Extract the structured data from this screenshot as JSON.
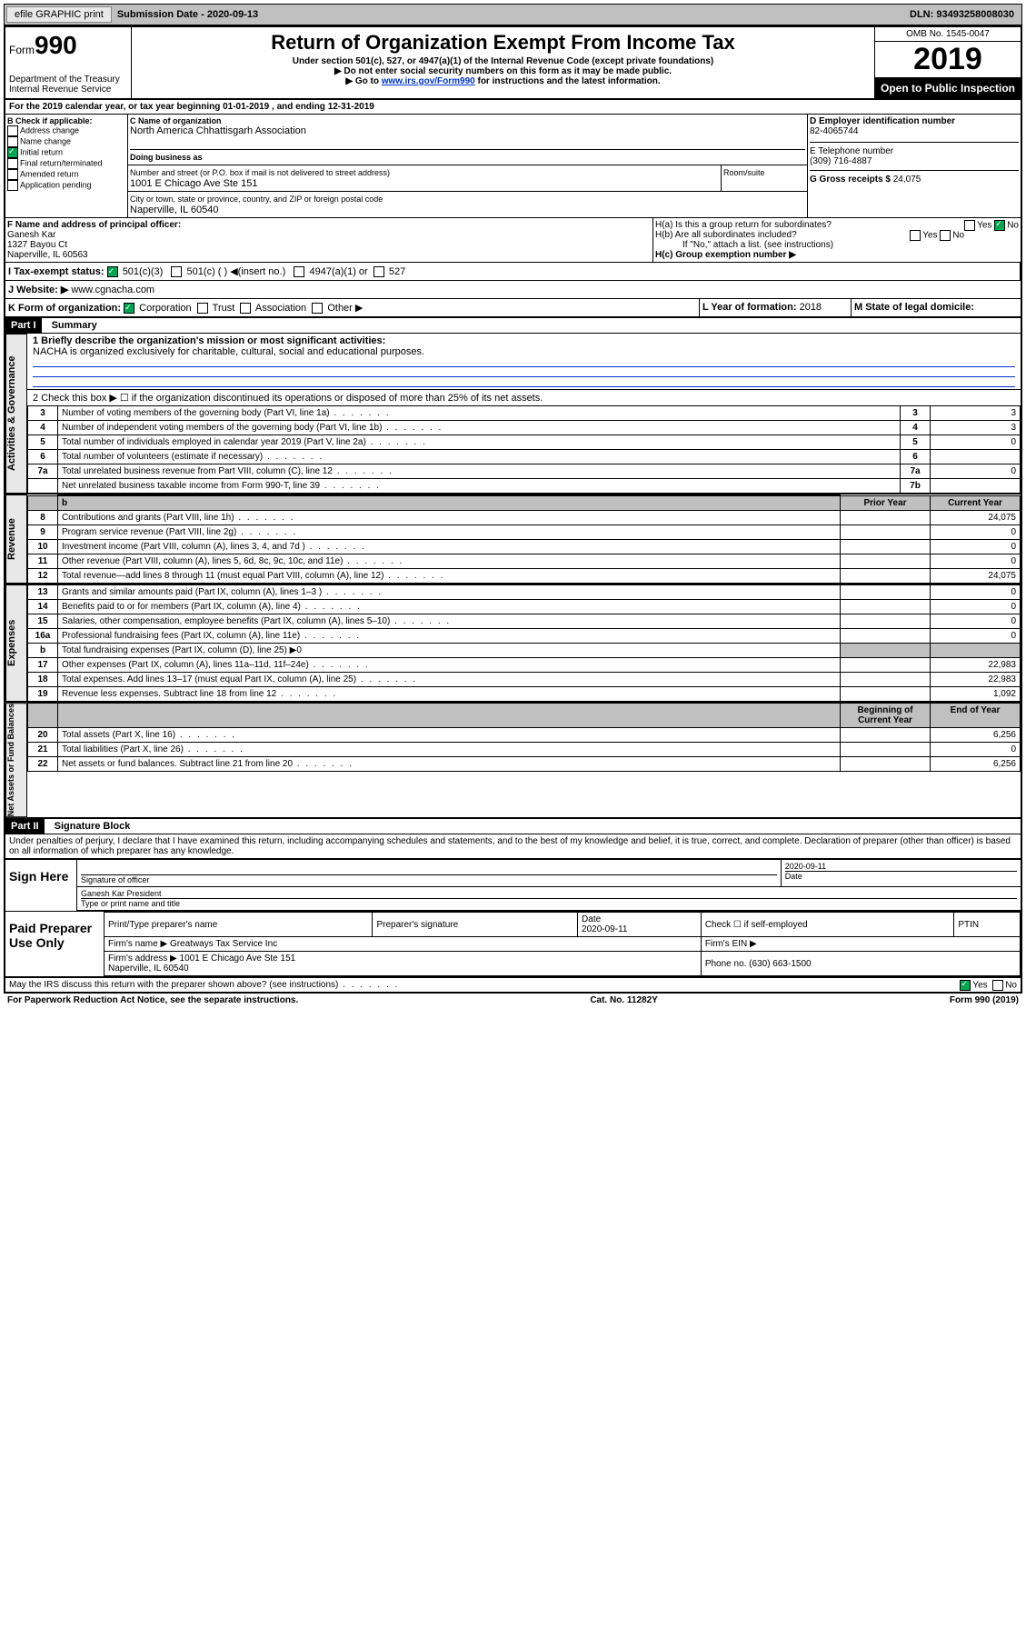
{
  "topbar": {
    "efile": "efile GRAPHIC print",
    "sub_label": "Submission Date - 2020-09-13",
    "dln": "DLN: 93493258008030"
  },
  "header": {
    "form_prefix": "Form",
    "form_no": "990",
    "dept": "Department of the Treasury\nInternal Revenue Service",
    "title": "Return of Organization Exempt From Income Tax",
    "sub1": "Under section 501(c), 527, or 4947(a)(1) of the Internal Revenue Code (except private foundations)",
    "sub2": "▶ Do not enter social security numbers on this form as it may be made public.",
    "sub3_a": "▶ Go to ",
    "sub3_link": "www.irs.gov/Form990",
    "sub3_b": " for instructions and the latest information.",
    "omb": "OMB No. 1545-0047",
    "year": "2019",
    "inspect": "Open to Public Inspection"
  },
  "line_a": "For the 2019 calendar year, or tax year beginning 01-01-2019   , and ending 12-31-2019",
  "box_b": {
    "title": "B Check if applicable:",
    "items": [
      "Address change",
      "Name change",
      "Initial return",
      "Final return/terminated",
      "Amended return",
      "Application pending"
    ],
    "checked_idx": 2
  },
  "box_c": {
    "lbl_name": "C Name of organization",
    "name": "North America Chhattisgarh Association",
    "dba_lbl": "Doing business as",
    "dba": "",
    "addr_lbl": "Number and street (or P.O. box if mail is not delivered to street address)",
    "room_lbl": "Room/suite",
    "addr": "1001 E Chicago Ave Ste 151",
    "city_lbl": "City or town, state or province, country, and ZIP or foreign postal code",
    "city": "Naperville, IL  60540"
  },
  "box_d": {
    "lbl": "D Employer identification number",
    "val": "82-4065744"
  },
  "box_e": {
    "lbl": "E Telephone number",
    "val": "(309) 716-4887"
  },
  "box_g": {
    "lbl": "G Gross receipts $",
    "val": "24,075"
  },
  "box_f": {
    "lbl": "F  Name and address of principal officer:",
    "name": "Ganesh Kar",
    "addr": "1327 Bayou Ct\nNaperville, IL  60563"
  },
  "box_h": {
    "a": "H(a)  Is this a group return for subordinates?",
    "a_yes": "Yes",
    "a_no": "No",
    "b": "H(b)  Are all subordinates included?",
    "b_yes": "Yes",
    "b_no": "No",
    "note": "If \"No,\" attach a list. (see instructions)",
    "c": "H(c)  Group exemption number ▶"
  },
  "row_i": {
    "lbl": "I     Tax-exempt status:",
    "opts": [
      "501(c)(3)",
      "501(c) (  ) ◀(insert no.)",
      "4947(a)(1) or",
      "527"
    ]
  },
  "row_j": {
    "lbl": "J    Website: ▶",
    "val": "www.cgnacha.com"
  },
  "row_k": {
    "lbl": "K Form of organization:",
    "opts": [
      "Corporation",
      "Trust",
      "Association",
      "Other ▶"
    ]
  },
  "row_l": {
    "lbl": "L Year of formation:",
    "val": "2018"
  },
  "row_m": {
    "lbl": "M State of legal domicile:",
    "val": ""
  },
  "part1": {
    "hdr": "Part I",
    "title": "Summary",
    "q1": "1  Briefly describe the organization's mission or most significant activities:",
    "q1_ans": "NACHA is organized exclusively for charitable, cultural, social and educational purposes.",
    "q2": "2   Check this box ▶ ☐  if the organization discontinued its operations or disposed of more than 25% of its net assets.",
    "rows_ag": [
      {
        "n": "3",
        "t": "Number of voting members of the governing body (Part VI, line 1a)",
        "idx": "3",
        "v": "3"
      },
      {
        "n": "4",
        "t": "Number of independent voting members of the governing body (Part VI, line 1b)",
        "idx": "4",
        "v": "3"
      },
      {
        "n": "5",
        "t": "Total number of individuals employed in calendar year 2019 (Part V, line 2a)",
        "idx": "5",
        "v": "0"
      },
      {
        "n": "6",
        "t": "Total number of volunteers (estimate if necessary)",
        "idx": "6",
        "v": ""
      },
      {
        "n": "7a",
        "t": "Total unrelated business revenue from Part VIII, column (C), line 12",
        "idx": "7a",
        "v": "0"
      },
      {
        "n": "",
        "t": "Net unrelated business taxable income from Form 990-T, line 39",
        "idx": "7b",
        "v": ""
      }
    ],
    "col_hdr_prior": "Prior Year",
    "col_hdr_curr": "Current Year",
    "rows_rev": [
      {
        "n": "8",
        "t": "Contributions and grants (Part VIII, line 1h)",
        "p": "",
        "c": "24,075"
      },
      {
        "n": "9",
        "t": "Program service revenue (Part VIII, line 2g)",
        "p": "",
        "c": "0"
      },
      {
        "n": "10",
        "t": "Investment income (Part VIII, column (A), lines 3, 4, and 7d )",
        "p": "",
        "c": "0"
      },
      {
        "n": "11",
        "t": "Other revenue (Part VIII, column (A), lines 5, 6d, 8c, 9c, 10c, and 11e)",
        "p": "",
        "c": "0"
      },
      {
        "n": "12",
        "t": "Total revenue—add lines 8 through 11 (must equal Part VIII, column (A), line 12)",
        "p": "",
        "c": "24,075"
      }
    ],
    "rows_exp": [
      {
        "n": "13",
        "t": "Grants and similar amounts paid (Part IX, column (A), lines 1–3 )",
        "p": "",
        "c": "0"
      },
      {
        "n": "14",
        "t": "Benefits paid to or for members (Part IX, column (A), line 4)",
        "p": "",
        "c": "0"
      },
      {
        "n": "15",
        "t": "Salaries, other compensation, employee benefits (Part IX, column (A), lines 5–10)",
        "p": "",
        "c": "0"
      },
      {
        "n": "16a",
        "t": "Professional fundraising fees (Part IX, column (A), line 11e)",
        "p": "",
        "c": "0"
      },
      {
        "n": "b",
        "t": "Total fundraising expenses (Part IX, column (D), line 25) ▶0",
        "p": "-",
        "c": "-"
      },
      {
        "n": "17",
        "t": "Other expenses (Part IX, column (A), lines 11a–11d, 11f–24e)",
        "p": "",
        "c": "22,983"
      },
      {
        "n": "18",
        "t": "Total expenses. Add lines 13–17 (must equal Part IX, column (A), line 25)",
        "p": "",
        "c": "22,983"
      },
      {
        "n": "19",
        "t": "Revenue less expenses. Subtract line 18 from line 12",
        "p": "",
        "c": "1,092"
      }
    ],
    "col_hdr_beg": "Beginning of Current Year",
    "col_hdr_end": "End of Year",
    "rows_net": [
      {
        "n": "20",
        "t": "Total assets (Part X, line 16)",
        "p": "",
        "c": "6,256"
      },
      {
        "n": "21",
        "t": "Total liabilities (Part X, line 26)",
        "p": "",
        "c": "0"
      },
      {
        "n": "22",
        "t": "Net assets or fund balances. Subtract line 21 from line 20",
        "p": "",
        "c": "6,256"
      }
    ],
    "vert_ag": "Activities & Governance",
    "vert_rev": "Revenue",
    "vert_exp": "Expenses",
    "vert_net": "Net Assets or Fund Balances"
  },
  "part2": {
    "hdr": "Part II",
    "title": "Signature Block",
    "decl": "Under penalties of perjury, I declare that I have examined this return, including accompanying schedules and statements, and to the best of my knowledge and belief, it is true, correct, and complete. Declaration of preparer (other than officer) is based on all information of which preparer has any knowledge."
  },
  "sign": {
    "left": "Sign Here",
    "sig_lbl": "Signature of officer",
    "date": "2020-09-11",
    "date_lbl": "Date",
    "name": "Ganesh Kar President",
    "name_lbl": "Type or print name and title"
  },
  "preparer": {
    "left": "Paid Preparer Use Only",
    "r1": [
      "Print/Type preparer's name",
      "Preparer's signature",
      "Date\n2020-09-11",
      "Check ☐ if self-employed",
      "PTIN"
    ],
    "r2_lbl": "Firm's name    ▶",
    "r2_val": "Greatways Tax Service Inc",
    "r2_ein": "Firm's EIN ▶",
    "r3_lbl": "Firm's address ▶",
    "r3_val": "1001 E Chicago Ave Ste 151\nNaperville, IL  60540",
    "r3_ph": "Phone no. (630) 663-1500"
  },
  "discuss": {
    "q": "May the IRS discuss this return with the preparer shown above? (see instructions)",
    "yes": "Yes",
    "no": "No"
  },
  "footer": {
    "left": "For Paperwork Reduction Act Notice, see the separate instructions.",
    "mid": "Cat. No. 11282Y",
    "right": "Form 990 (2019)"
  }
}
